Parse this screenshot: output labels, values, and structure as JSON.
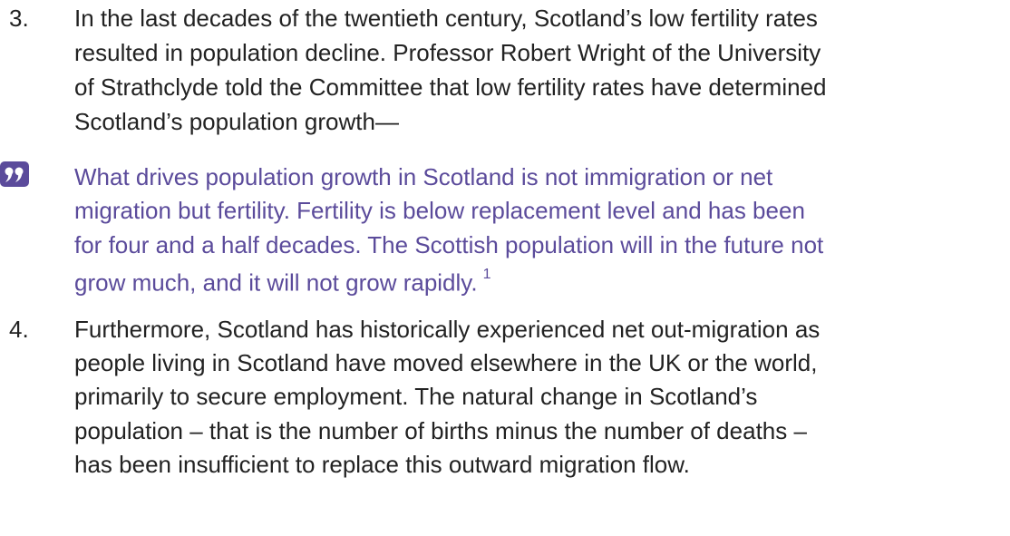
{
  "paragraphs": [
    {
      "number": "3.",
      "lines": [
        "In the last decades of the twentieth century, Scotland’s low fertility rates",
        "resulted in population decline. Professor Robert Wright of the University",
        "of Strathclyde told the Committee that low fertility rates have determined",
        "Scotland’s population growth—"
      ]
    },
    {
      "number": "4.",
      "lines": [
        "Furthermore, Scotland has historically experienced net out-migration as",
        "people living in Scotland have moved elsewhere in the UK or the world,",
        "primarily to secure employment. The natural change in Scotland’s",
        "population – that is the number of births minus the number of deaths –",
        "has been insufficient to replace this outward migration flow."
      ]
    }
  ],
  "quote": {
    "lines": [
      "What drives population growth in Scotland is not immigration or net",
      "migration but fertility. Fertility is below replacement level and has been",
      "for four and a half decades. The Scottish population will in the future not",
      "grow much, and it will not grow rapidly."
    ],
    "footnote": "1"
  }
}
